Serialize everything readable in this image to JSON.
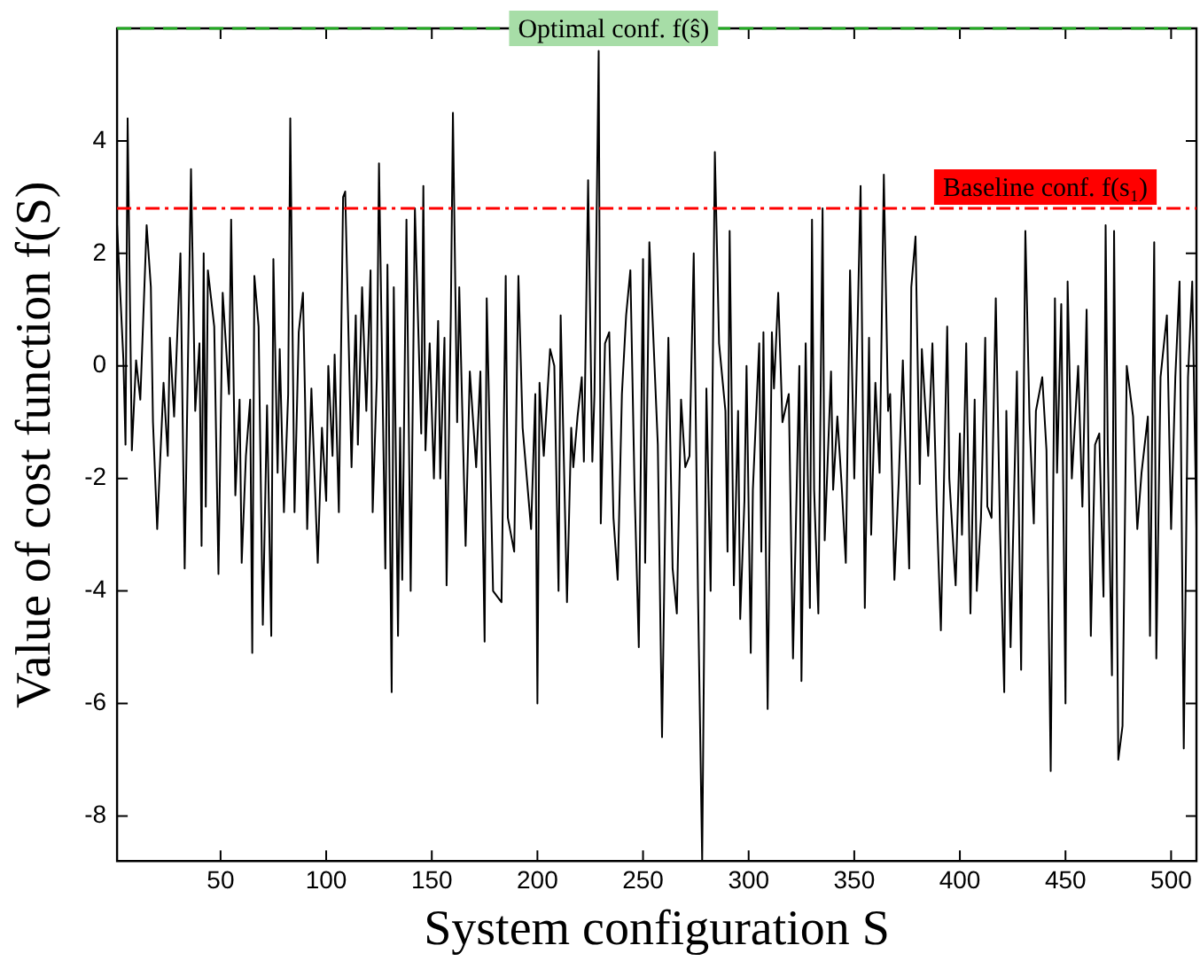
{
  "chart_data": {
    "type": "line",
    "xlabel": "System configuration S",
    "ylabel": "Value of cost function f(S)",
    "xlim": [
      1,
      512
    ],
    "xticks": [
      50,
      100,
      150,
      200,
      250,
      300,
      350,
      400,
      450,
      500
    ],
    "ylim": [
      -8.8,
      6
    ],
    "yticks": [
      -8,
      -6,
      -4,
      -2,
      0,
      2,
      4
    ],
    "grid": false,
    "legend": false,
    "marker": "none",
    "line_style": "solid",
    "ref_lines": [
      {
        "axis": "y",
        "value": 6,
        "label": "Optimal conf. f(ŝ)",
        "color": "#22aa22",
        "line_style": "dashed"
      },
      {
        "axis": "y",
        "value": 2.8,
        "label": "Baseline conf. f(s₁)",
        "color": "#ff0000",
        "line_style": "dashdot"
      }
    ],
    "series": [
      {
        "color": "#000000",
        "x": [
          1,
          4,
          5,
          6,
          8,
          10,
          12,
          15,
          17,
          18,
          20,
          23,
          25,
          26,
          28,
          31,
          33,
          36,
          38,
          40,
          41,
          42,
          43,
          44,
          47,
          49,
          51,
          54,
          55,
          57,
          59,
          60,
          62,
          64,
          65,
          66,
          68,
          70,
          72,
          74,
          75,
          77,
          78,
          80,
          82,
          83,
          85,
          87,
          89,
          90,
          91,
          93,
          96,
          98,
          100,
          101,
          103,
          104,
          106,
          108,
          109,
          112,
          114,
          115,
          117,
          119,
          121,
          122,
          124,
          125,
          128,
          129,
          131,
          132,
          134,
          135,
          136,
          138,
          140,
          142,
          145,
          146,
          147,
          149,
          151,
          153,
          154,
          156,
          157,
          159,
          160,
          162,
          163,
          166,
          168,
          171,
          173,
          175,
          176,
          179,
          183,
          185,
          186,
          189,
          191,
          193,
          197,
          199,
          200,
          201,
          203,
          206,
          208,
          210,
          211,
          214,
          216,
          217,
          219,
          221,
          222,
          224,
          226,
          227,
          229,
          230,
          232,
          234,
          236,
          238,
          240,
          242,
          244,
          246,
          248,
          250,
          251,
          253,
          255,
          257,
          259,
          261,
          262,
          264,
          266,
          268,
          270,
          272,
          274,
          276,
          278,
          280,
          282,
          284,
          286,
          289,
          290,
          291,
          293,
          295,
          296,
          298,
          299,
          301,
          302,
          305,
          306,
          307,
          309,
          311,
          312,
          314,
          316,
          319,
          321,
          324,
          325,
          327,
          329,
          330,
          331,
          333,
          335,
          336,
          339,
          340,
          342,
          344,
          346,
          348,
          350,
          353,
          355,
          357,
          358,
          360,
          362,
          364,
          366,
          367,
          369,
          371,
          373,
          376,
          377,
          379,
          381,
          382,
          385,
          387,
          389,
          391,
          394,
          395,
          398,
          400,
          401,
          403,
          405,
          407,
          408,
          410,
          412,
          413,
          415,
          417,
          419,
          421,
          422,
          424,
          427,
          429,
          431,
          433,
          435,
          436,
          439,
          441,
          443,
          445,
          446,
          448,
          450,
          451,
          453,
          456,
          458,
          460,
          462,
          464,
          466,
          468,
          469,
          470,
          472,
          473,
          475,
          477,
          479,
          482,
          484,
          486,
          489,
          490,
          492,
          493,
          495,
          498,
          500,
          502,
          504,
          506,
          508,
          510,
          512
        ],
        "values": [
          2.5,
          0.1,
          -1.4,
          4.4,
          -1.5,
          0.1,
          -0.6,
          2.5,
          1.4,
          -1.0,
          -2.9,
          -0.3,
          -1.6,
          0.5,
          -0.9,
          2.0,
          -3.6,
          3.5,
          -0.8,
          0.4,
          -3.2,
          2.0,
          -2.5,
          1.7,
          0.7,
          -3.7,
          1.3,
          -0.5,
          2.6,
          -2.3,
          -0.6,
          -3.5,
          -1.6,
          -0.6,
          -5.1,
          1.6,
          0.7,
          -4.6,
          -0.7,
          -4.8,
          1.9,
          -1.9,
          0.3,
          -2.6,
          -0.5,
          4.4,
          -2.6,
          0.6,
          1.3,
          -0.6,
          -2.9,
          -0.4,
          -3.5,
          -1.1,
          -2.4,
          0.0,
          -1.6,
          0.2,
          -2.6,
          3.0,
          3.1,
          -1.8,
          0.9,
          -1.4,
          1.4,
          -0.8,
          1.7,
          -2.6,
          -0.2,
          3.6,
          -3.6,
          1.8,
          -5.8,
          1.4,
          -4.8,
          -1.1,
          -3.8,
          2.6,
          -4.0,
          2.8,
          -1.2,
          3.2,
          -1.5,
          0.4,
          -2.0,
          0.8,
          -2.0,
          0.5,
          -3.9,
          0.9,
          4.5,
          -1.0,
          1.4,
          -3.2,
          -0.1,
          -1.8,
          -0.1,
          -4.9,
          1.2,
          -4.0,
          -4.2,
          1.6,
          -2.7,
          -3.3,
          1.6,
          -1.1,
          -2.9,
          -0.5,
          -6.0,
          -0.3,
          -1.6,
          0.3,
          0.0,
          -4.0,
          0.9,
          -4.2,
          -1.1,
          -1.8,
          -0.9,
          -0.2,
          -1.7,
          3.3,
          -1.7,
          -0.5,
          5.6,
          -2.8,
          0.4,
          0.6,
          -2.7,
          -3.8,
          -0.5,
          0.9,
          1.7,
          -2.2,
          -5.0,
          1.9,
          -3.5,
          2.2,
          0.4,
          -1.4,
          -6.6,
          -1.4,
          0.5,
          -3.6,
          -4.4,
          -0.6,
          -1.8,
          -1.6,
          2.0,
          -4.0,
          -8.8,
          -0.4,
          -4.0,
          3.8,
          0.4,
          -0.8,
          -3.3,
          2.4,
          -3.9,
          -0.8,
          -4.5,
          -2.4,
          0.0,
          -5.1,
          -2.2,
          0.4,
          -3.3,
          0.6,
          -6.1,
          0.6,
          -0.4,
          1.3,
          -1.0,
          -0.5,
          -5.2,
          0.0,
          -5.6,
          0.4,
          -4.3,
          2.6,
          -2.2,
          -4.4,
          2.8,
          -3.1,
          -0.1,
          -2.2,
          -0.9,
          -2.1,
          -3.5,
          1.7,
          -2.0,
          3.2,
          -4.3,
          0.5,
          -3.0,
          -0.3,
          -1.9,
          3.4,
          -0.8,
          -0.5,
          -3.8,
          -2.1,
          0.1,
          -3.6,
          1.4,
          2.3,
          -2.1,
          0.3,
          -1.6,
          0.4,
          -2.5,
          -4.7,
          0.7,
          -2.0,
          -3.9,
          -1.2,
          -3.0,
          0.4,
          -4.4,
          -0.6,
          -4.0,
          -2.7,
          0.5,
          -2.5,
          -2.7,
          1.2,
          -2.9,
          -5.8,
          -0.8,
          -5.0,
          -0.1,
          -5.4,
          2.4,
          -1.0,
          -2.8,
          -0.8,
          -0.2,
          -1.5,
          -7.2,
          1.2,
          -1.9,
          1.1,
          -6.0,
          1.5,
          -2.0,
          0.0,
          -2.5,
          1.0,
          -4.8,
          -1.4,
          -1.2,
          -4.1,
          2.5,
          -1.4,
          -5.5,
          2.4,
          -7.0,
          -6.4,
          0.0,
          -0.9,
          -2.9,
          -1.9,
          -0.9,
          -4.8,
          2.2,
          -5.2,
          -0.2,
          0.9,
          -2.9,
          -0.2,
          1.5,
          -6.8,
          -0.2,
          1.5,
          -2.9
        ]
      }
    ]
  }
}
